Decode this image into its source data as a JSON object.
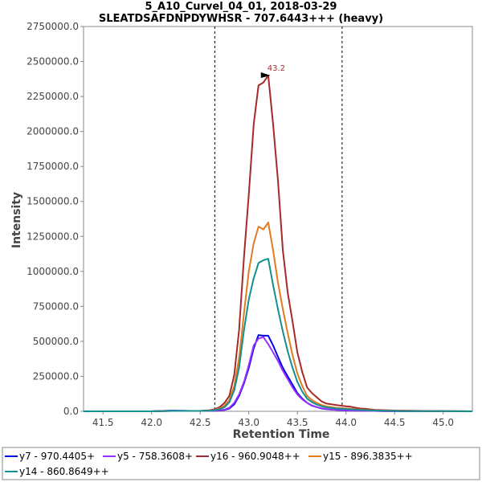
{
  "chart_data": {
    "type": "line",
    "title": "5_A10_Curvel_04_01, 2018-03-29",
    "subtitle": "SLEATDSAFDNPDYWHSR - 707.6443+++ (heavy)",
    "xlabel": "Retention Time",
    "ylabel": "Intensity",
    "xlim": [
      41.3,
      45.3
    ],
    "ylim": [
      0,
      2750000
    ],
    "x_ticks": [
      "41.5",
      "42.0",
      "42.5",
      "43.0",
      "43.5",
      "44.0",
      "44.5",
      "45.0"
    ],
    "y_ticks": [
      "0.0",
      "250000.0",
      "500000.0",
      "750000.0",
      "1000000.0",
      "1250000.0",
      "1500000.0",
      "1750000.0",
      "2000000.0",
      "2250000.0",
      "2500000.0",
      "2750000.0"
    ],
    "grid": false,
    "legend_position": "bottom",
    "boundaries": [
      42.65,
      43.96
    ],
    "annotation": {
      "label": "43.2",
      "x": 43.24,
      "y": 2400000,
      "color": "#a52a2a"
    },
    "x": [
      41.3,
      41.5,
      41.8,
      42.0,
      42.2,
      42.4,
      42.5,
      42.6,
      42.65,
      42.7,
      42.75,
      42.8,
      42.85,
      42.9,
      42.95,
      43.0,
      43.05,
      43.1,
      43.15,
      43.2,
      43.25,
      43.3,
      43.35,
      43.4,
      43.45,
      43.5,
      43.55,
      43.6,
      43.65,
      43.7,
      43.75,
      43.8,
      43.85,
      43.9,
      43.95,
      44.0,
      44.05,
      44.1,
      44.15,
      44.2,
      44.3,
      44.4,
      44.5,
      44.6,
      44.8,
      45.0,
      45.3
    ],
    "series": [
      {
        "name": "y7 - 970.4405+",
        "color": "#0000e6",
        "values": [
          0,
          0,
          0,
          0,
          5000,
          3000,
          3000,
          3000,
          4000,
          6000,
          10000,
          20000,
          50000,
          110000,
          200000,
          310000,
          450000,
          545000,
          540000,
          540000,
          470000,
          390000,
          310000,
          250000,
          190000,
          130000,
          90000,
          60000,
          40000,
          30000,
          20000,
          15000,
          12000,
          10000,
          8000,
          6000,
          5000,
          5000,
          4000,
          3000,
          3000,
          2000,
          2000,
          1000,
          1000,
          0,
          0
        ]
      },
      {
        "name": "y5 - 758.3608+",
        "color": "#9b30ff",
        "values": [
          0,
          0,
          0,
          0,
          4000,
          3000,
          3000,
          3000,
          4000,
          7000,
          12000,
          25000,
          60000,
          120000,
          210000,
          330000,
          470000,
          520000,
          530000,
          480000,
          420000,
          360000,
          290000,
          230000,
          170000,
          120000,
          85000,
          60000,
          42000,
          30000,
          22000,
          16000,
          13000,
          11000,
          9000,
          7000,
          6000,
          5000,
          4000,
          3000,
          3000,
          2000,
          2000,
          1000,
          1000,
          0,
          0
        ]
      },
      {
        "name": "y16 - 960.9048++",
        "color": "#a52a2a",
        "values": [
          0,
          0,
          0,
          0,
          3000,
          3000,
          3000,
          8000,
          15000,
          30000,
          60000,
          110000,
          260000,
          580000,
          1100000,
          1550000,
          2050000,
          2330000,
          2350000,
          2400000,
          2050000,
          1650000,
          1150000,
          850000,
          640000,
          420000,
          280000,
          170000,
          130000,
          100000,
          70000,
          55000,
          50000,
          45000,
          40000,
          36000,
          32000,
          25000,
          20000,
          18000,
          10000,
          8000,
          6000,
          5000,
          3000,
          2000,
          0
        ]
      },
      {
        "name": "y15 - 896.3835++",
        "color": "#e07b20",
        "values": [
          0,
          0,
          0,
          0,
          3000,
          3000,
          3000,
          6000,
          10000,
          20000,
          40000,
          80000,
          180000,
          380000,
          700000,
          1000000,
          1200000,
          1320000,
          1300000,
          1350000,
          1150000,
          920000,
          730000,
          560000,
          400000,
          270000,
          180000,
          110000,
          80000,
          60000,
          45000,
          35000,
          30000,
          25000,
          22000,
          20000,
          17000,
          15000,
          12000,
          10000,
          7000,
          5000,
          4000,
          3000,
          2000,
          1000,
          0
        ]
      },
      {
        "name": "y14 - 860.8649++",
        "color": "#109090",
        "values": [
          0,
          0,
          0,
          0,
          3000,
          3000,
          3000,
          5000,
          8000,
          15000,
          30000,
          65000,
          150000,
          310000,
          580000,
          800000,
          950000,
          1060000,
          1080000,
          1090000,
          900000,
          730000,
          570000,
          430000,
          310000,
          210000,
          140000,
          90000,
          65000,
          48000,
          36000,
          28000,
          24000,
          20000,
          18000,
          16000,
          14000,
          12000,
          10000,
          8000,
          6000,
          4000,
          3000,
          2000,
          2000,
          1000,
          0
        ]
      }
    ]
  }
}
